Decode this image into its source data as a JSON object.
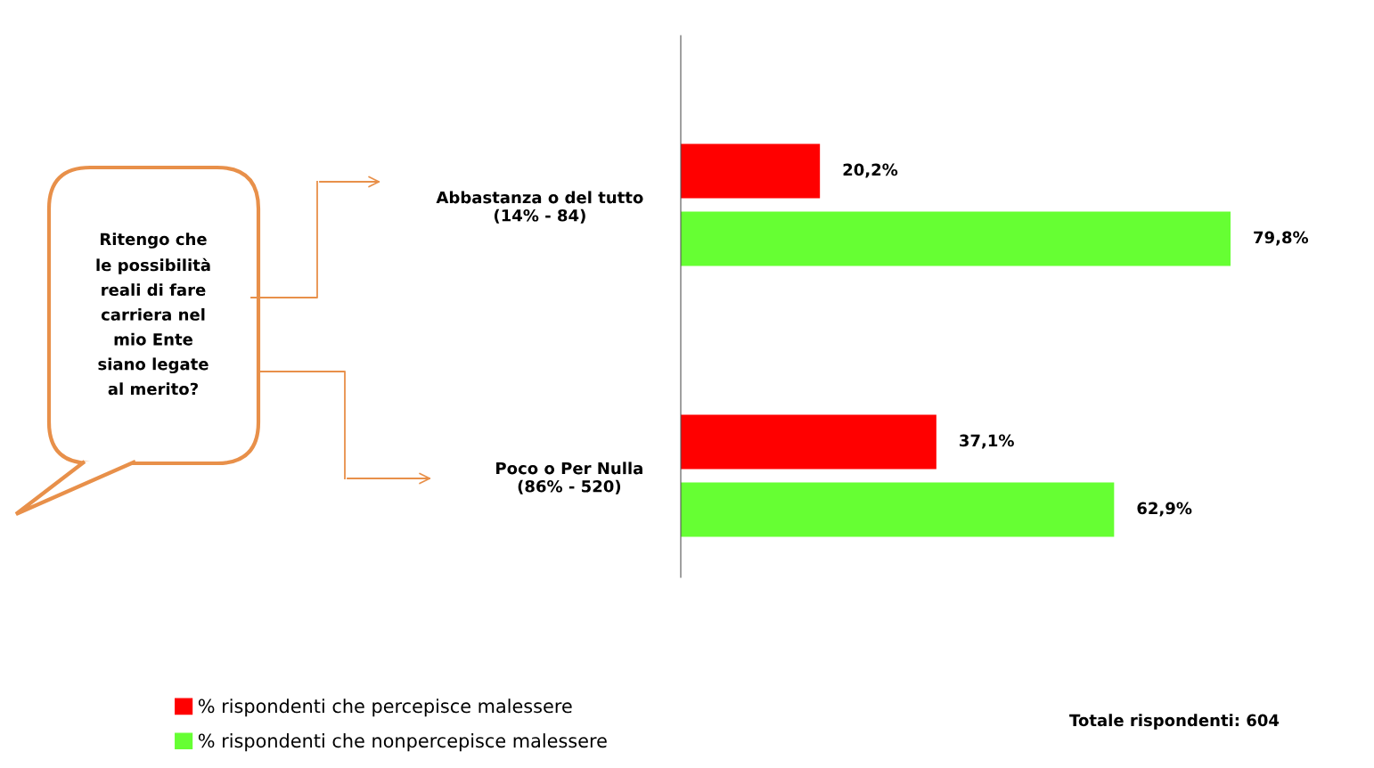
{
  "chart_data": {
    "type": "bar",
    "orientation": "horizontal",
    "categories": [
      "Abbastanza o del tutto\n(14% - 84)",
      "Poco o Per Nulla\n(86% - 520)"
    ],
    "series": [
      {
        "name": "% rispondenti che percepisce malessere",
        "color": "#ff0000",
        "values": [
          20.2,
          37.1
        ],
        "value_labels": [
          "20,2%",
          "37,1%"
        ]
      },
      {
        "name": "% rispondenti che nonpercepisce malessere",
        "color": "#66ff33",
        "values": [
          79.8,
          62.9
        ],
        "value_labels": [
          "79,8%",
          "62,9%"
        ]
      }
    ],
    "tick_labels": "y",
    "grid": false,
    "legend": "bottom left",
    "annotations": [
      "Ritengo che\nle possibilità\nreali di fare\ncarriera nel\nmio Ente\nsiano legate\nal merito?",
      "Totale rispondenti: 604"
    ]
  }
}
